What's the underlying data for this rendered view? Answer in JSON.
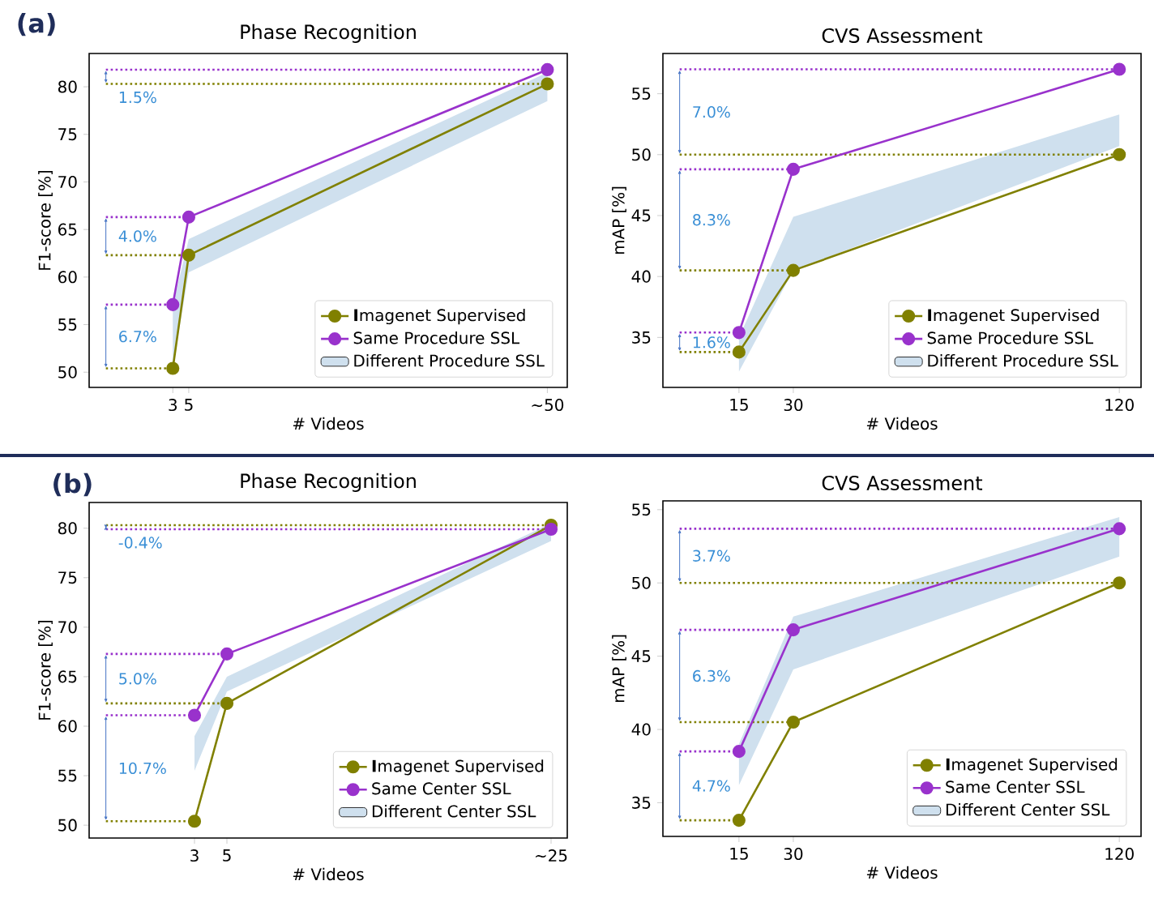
{
  "chart_data": [
    {
      "type": "line",
      "title": "Phase Recognition",
      "xlabel": "# Videos",
      "ylabel": "F1-score [%]",
      "x": [
        3,
        5,
        50
      ],
      "xlim": [
        -7.5,
        52.5
      ],
      "ylim": [
        48.4,
        83.5
      ],
      "xticks": [
        3,
        5,
        {
          "value": 50,
          "label": "~50"
        }
      ],
      "yticks": [
        50,
        55,
        60,
        65,
        70,
        75,
        80
      ],
      "marker": "circle",
      "legend": "bottom right",
      "series": [
        {
          "name": "**I**magenet Supervised",
          "color": "#808000",
          "values": [
            50.4,
            62.3,
            80.3
          ]
        },
        {
          "name": "Same Procedure SSL",
          "color": "#9932cc",
          "values": [
            57.1,
            66.3,
            81.8
          ]
        },
        {
          "name": "Different Procedure SSL",
          "type": "area",
          "marker": "none",
          "color": "#cfe0ee",
          "values": [
            null,
            null,
            null
          ],
          "lower": [
            50.5,
            60.5,
            78.5
          ],
          "upper": [
            57.0,
            64.0,
            81.5
          ]
        }
      ],
      "ref_lines": [
        {
          "axis": "y",
          "value": 50.4,
          "color": "#808000",
          "line_style": "dotted"
        },
        {
          "axis": "y",
          "value": 62.3,
          "color": "#808000",
          "line_style": "dotted"
        },
        {
          "axis": "y",
          "value": 80.3,
          "color": "#808000",
          "line_style": "dotted"
        },
        {
          "axis": "y",
          "value": 57.1,
          "color": "#9932cc",
          "line_style": "dotted"
        },
        {
          "axis": "y",
          "value": 66.3,
          "color": "#9932cc",
          "line_style": "dotted"
        },
        {
          "axis": "y",
          "value": 81.8,
          "color": "#9932cc",
          "line_style": "dotted"
        }
      ],
      "annotations": [
        "6.7%",
        "4.0%",
        "1.5%",
        "(a)"
      ]
    },
    {
      "type": "line",
      "title": "CVS Assessment",
      "xlabel": "# Videos",
      "ylabel": "mAP [%]",
      "x": [
        15,
        30,
        120
      ],
      "xlim": [
        -6,
        126
      ],
      "ylim": [
        30.9,
        58.3
      ],
      "xticks": [
        15,
        30,
        120
      ],
      "yticks": [
        35,
        40,
        45,
        50,
        55
      ],
      "marker": "circle",
      "legend": "bottom right",
      "series": [
        {
          "name": "**I**magenet Supervised",
          "color": "#808000",
          "values": [
            33.8,
            40.5,
            50.0
          ]
        },
        {
          "name": "Same Procedure SSL",
          "color": "#9932cc",
          "values": [
            35.4,
            48.8,
            57.0
          ]
        },
        {
          "name": "Different Procedure SSL",
          "type": "area",
          "marker": "none",
          "color": "#cfe0ee",
          "values": [
            null,
            null,
            null
          ],
          "lower": [
            32.2,
            40.5,
            50.7
          ],
          "upper": [
            35.0,
            44.9,
            53.3
          ]
        }
      ],
      "ref_lines": [
        {
          "axis": "y",
          "value": 33.8,
          "color": "#808000",
          "line_style": "dotted"
        },
        {
          "axis": "y",
          "value": 40.5,
          "color": "#808000",
          "line_style": "dotted"
        },
        {
          "axis": "y",
          "value": 50.0,
          "color": "#808000",
          "line_style": "dotted"
        },
        {
          "axis": "y",
          "value": 35.4,
          "color": "#9932cc",
          "line_style": "dotted"
        },
        {
          "axis": "y",
          "value": 48.8,
          "color": "#9932cc",
          "line_style": "dotted"
        },
        {
          "axis": "y",
          "value": 57.0,
          "color": "#9932cc",
          "line_style": "dotted"
        }
      ],
      "annotations": [
        "1.6%",
        "8.3%",
        "7.0%"
      ]
    },
    {
      "type": "line",
      "title": "Phase Recognition",
      "xlabel": "# Videos",
      "ylabel": "F1-score [%]",
      "x": [
        3,
        5,
        25
      ],
      "xlim": [
        -3.5,
        26
      ],
      "ylim": [
        48.7,
        82.6
      ],
      "xticks": [
        3,
        5,
        {
          "value": 25,
          "label": "~25"
        }
      ],
      "yticks": [
        50,
        55,
        60,
        65,
        70,
        75,
        80
      ],
      "marker": "circle",
      "legend": "bottom right",
      "series": [
        {
          "name": "**I**magenet Supervised",
          "color": "#808000",
          "values": [
            50.4,
            62.3,
            80.3
          ]
        },
        {
          "name": "Same Center SSL",
          "color": "#9932cc",
          "values": [
            61.1,
            67.3,
            79.9
          ]
        },
        {
          "name": "Different Center SSL",
          "type": "area",
          "marker": "none",
          "color": "#cfe0ee",
          "values": [
            null,
            null,
            null
          ],
          "lower": [
            55.5,
            63.5,
            78.7
          ],
          "upper": [
            59.0,
            65.0,
            80.5
          ]
        }
      ],
      "ref_lines": [
        {
          "axis": "y",
          "value": 50.4,
          "color": "#808000",
          "line_style": "dotted"
        },
        {
          "axis": "y",
          "value": 62.3,
          "color": "#808000",
          "line_style": "dotted"
        },
        {
          "axis": "y",
          "value": 80.3,
          "color": "#808000",
          "line_style": "dotted"
        },
        {
          "axis": "y",
          "value": 61.1,
          "color": "#9932cc",
          "line_style": "dotted"
        },
        {
          "axis": "y",
          "value": 67.3,
          "color": "#9932cc",
          "line_style": "dotted"
        },
        {
          "axis": "y",
          "value": 79.9,
          "color": "#9932cc",
          "line_style": "dotted"
        }
      ],
      "annotations": [
        "10.7%",
        "5.0%",
        "-0.4%",
        "(b)"
      ]
    },
    {
      "type": "line",
      "title": "CVS Assessment",
      "xlabel": "# Videos",
      "ylabel": "mAP [%]",
      "x": [
        15,
        30,
        120
      ],
      "xlim": [
        -6,
        126
      ],
      "ylim": [
        32.7,
        55.6
      ],
      "xticks": [
        15,
        30,
        120
      ],
      "yticks": [
        35,
        40,
        45,
        50,
        55
      ],
      "marker": "circle",
      "legend": "bottom right",
      "series": [
        {
          "name": "**I**magenet Supervised",
          "color": "#808000",
          "values": [
            33.8,
            40.5,
            50.0
          ]
        },
        {
          "name": "Same Center SSL",
          "color": "#9932cc",
          "values": [
            38.5,
            46.8,
            53.7
          ]
        },
        {
          "name": "Different Center SSL",
          "type": "area",
          "marker": "none",
          "color": "#cfe0ee",
          "values": [
            null,
            null,
            null
          ],
          "lower": [
            36.2,
            44.1,
            51.8
          ],
          "upper": [
            39.0,
            47.7,
            54.5
          ]
        }
      ],
      "ref_lines": [
        {
          "axis": "y",
          "value": 33.8,
          "color": "#808000",
          "line_style": "dotted"
        },
        {
          "axis": "y",
          "value": 40.5,
          "color": "#808000",
          "line_style": "dotted"
        },
        {
          "axis": "y",
          "value": 50.0,
          "color": "#808000",
          "line_style": "dotted"
        },
        {
          "axis": "y",
          "value": 38.5,
          "color": "#9932cc",
          "line_style": "dotted"
        },
        {
          "axis": "y",
          "value": 46.8,
          "color": "#9932cc",
          "line_style": "dotted"
        },
        {
          "axis": "y",
          "value": 53.7,
          "color": "#9932cc",
          "line_style": "dotted"
        }
      ],
      "annotations": [
        "4.7%",
        "6.3%",
        "3.7%"
      ]
    }
  ]
}
